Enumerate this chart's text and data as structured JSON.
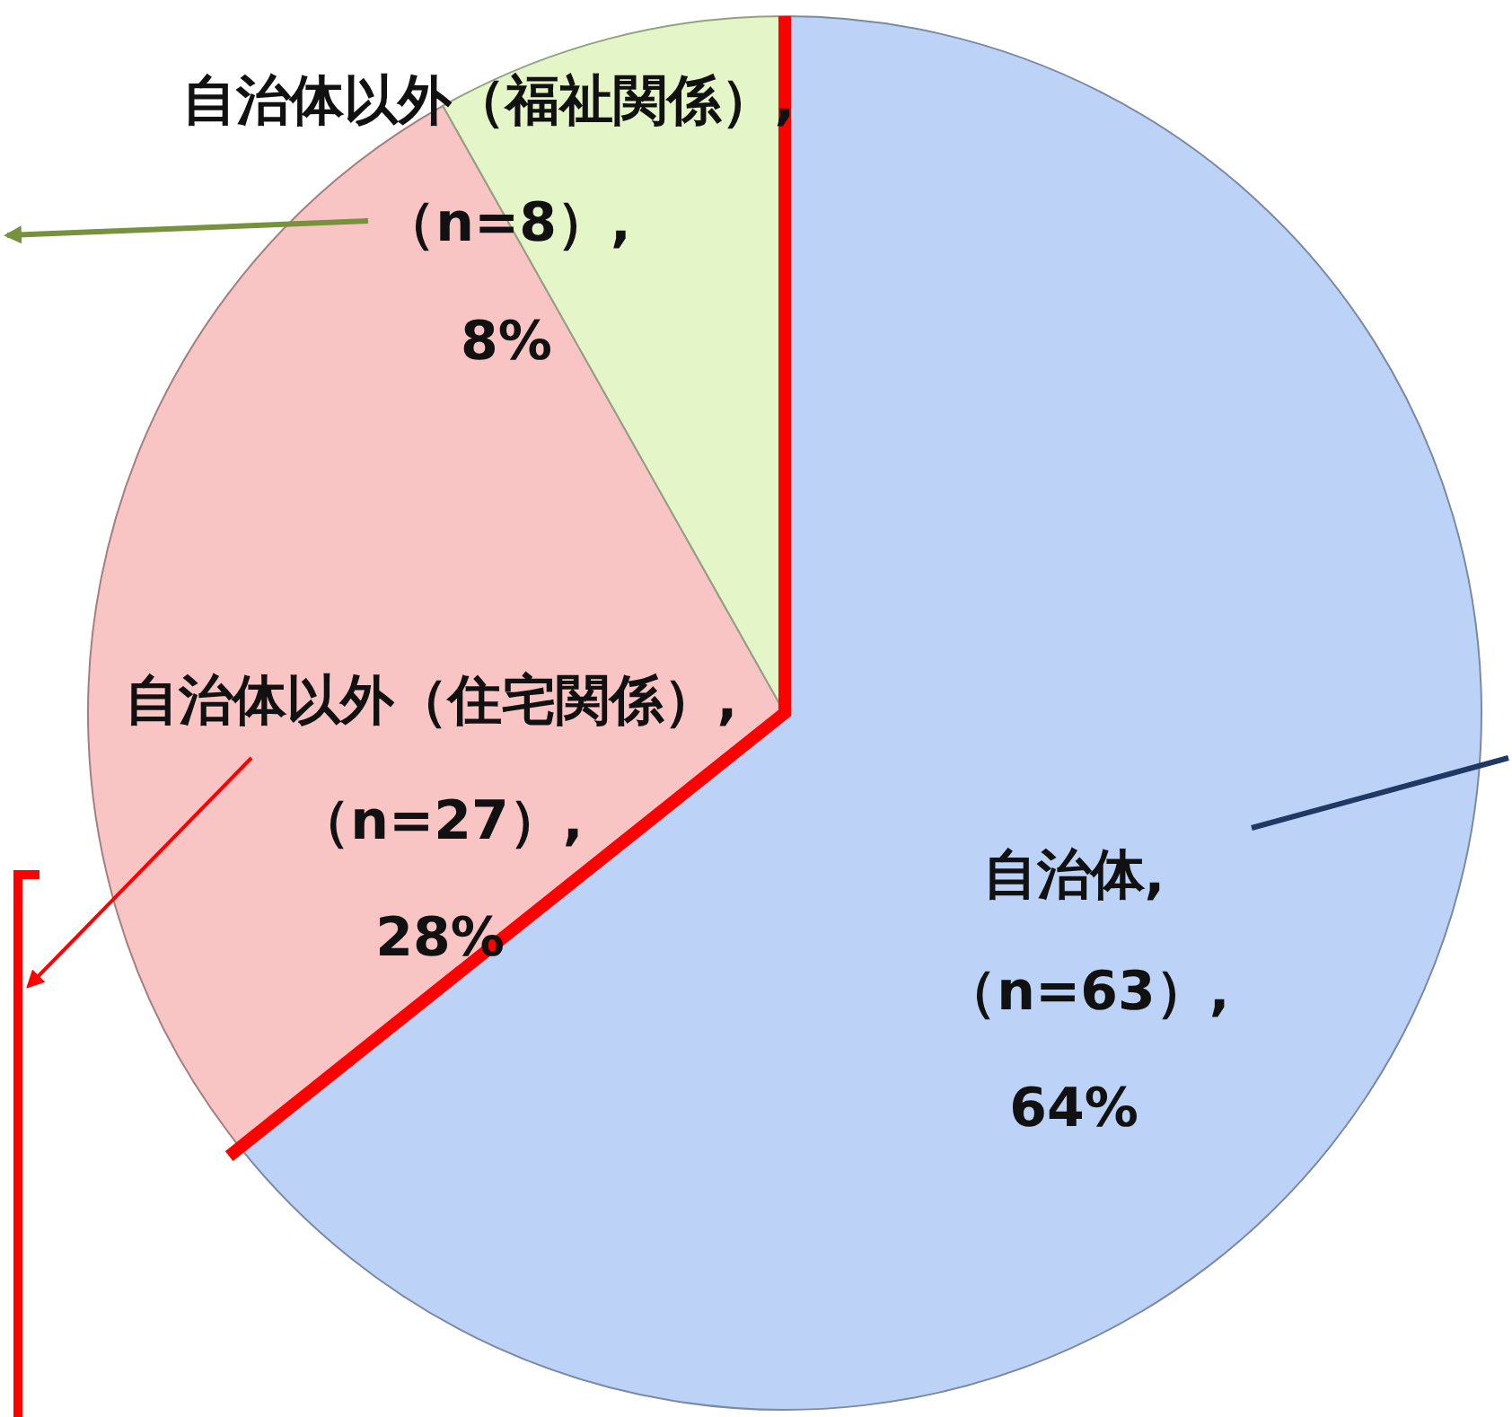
{
  "chart_data": {
    "type": "pie",
    "categories": [
      "自治体",
      "自治体以外（住宅関係）",
      "自治体以外（福祉関係）"
    ],
    "values": [
      63,
      27,
      8
    ],
    "value_labels": [
      ",\n（n=63）,\n64%",
      ",\n（n=27）,\n28%",
      ",\n（n=8）,\n8%"
    ],
    "colors": [
      "#bcd3f7",
      "#f8c4c4",
      "#e4f5c8"
    ]
  }
}
